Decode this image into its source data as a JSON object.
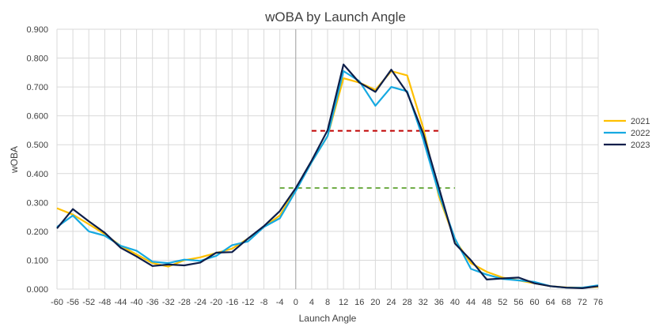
{
  "chart_data": {
    "type": "line",
    "title": "wOBA by Launch Angle",
    "xlabel": "Launch Angle",
    "ylabel": "wOBA",
    "ylim": [
      0,
      0.9
    ],
    "ytick_labels": [
      "0.000",
      "0.100",
      "0.200",
      "0.300",
      "0.400",
      "0.500",
      "0.600",
      "0.700",
      "0.800",
      "0.900"
    ],
    "grid": "horizontal",
    "legend_position": "right",
    "categories": [
      "-60",
      "-56",
      "-52",
      "-48",
      "-44",
      "-40",
      "-36",
      "-32",
      "-28",
      "-24",
      "-20",
      "-16",
      "-12",
      "-8",
      "-4",
      "0",
      "4",
      "8",
      "12",
      "16",
      "20",
      "24",
      "28",
      "32",
      "36",
      "40",
      "44",
      "48",
      "52",
      "56",
      "60",
      "64",
      "68",
      "72",
      "76"
    ],
    "series": [
      {
        "name": "2021",
        "color": "#FFC000",
        "values": [
          0.28,
          0.258,
          0.225,
          0.19,
          0.15,
          0.12,
          0.09,
          0.078,
          0.1,
          0.11,
          0.125,
          0.14,
          0.175,
          0.215,
          0.255,
          0.345,
          0.44,
          0.53,
          0.73,
          0.715,
          0.69,
          0.755,
          0.74,
          0.56,
          0.32,
          0.17,
          0.09,
          0.06,
          0.04,
          0.03,
          0.02,
          0.01,
          0.006,
          0.005,
          0.008
        ]
      },
      {
        "name": "2022",
        "color": "#16A9E1",
        "values": [
          0.215,
          0.255,
          0.2,
          0.185,
          0.15,
          0.133,
          0.095,
          0.09,
          0.102,
          0.098,
          0.115,
          0.152,
          0.165,
          0.215,
          0.245,
          0.34,
          0.44,
          0.53,
          0.755,
          0.72,
          0.635,
          0.7,
          0.685,
          0.52,
          0.33,
          0.175,
          0.07,
          0.05,
          0.035,
          0.03,
          0.025,
          0.01,
          0.005,
          0.005,
          0.013
        ]
      },
      {
        "name": "2023",
        "color": "#0D1E4A",
        "values": [
          0.21,
          0.277,
          0.235,
          0.195,
          0.143,
          0.113,
          0.08,
          0.085,
          0.082,
          0.092,
          0.126,
          0.128,
          0.175,
          0.218,
          0.27,
          0.35,
          0.445,
          0.55,
          0.778,
          0.715,
          0.683,
          0.76,
          0.68,
          0.54,
          0.35,
          0.158,
          0.1,
          0.033,
          0.037,
          0.04,
          0.02,
          0.01,
          0.005,
          0.003,
          0.01
        ]
      }
    ],
    "reference_lines": [
      {
        "y": 0.548,
        "x_from": "4",
        "x_to": "36",
        "color": "#C00000",
        "style": "dashed"
      },
      {
        "y": 0.35,
        "x_from": "-4",
        "x_to": "40",
        "color": "#70AD47",
        "style": "dashed"
      }
    ]
  }
}
